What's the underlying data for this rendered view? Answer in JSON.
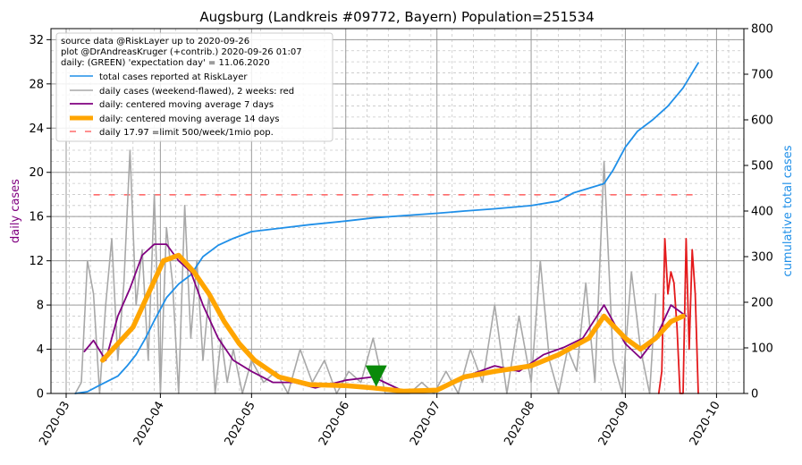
{
  "chart_data": {
    "type": "line",
    "title": "Augsburg (Landkreis #09772, Bayern) Population=251534",
    "ylabel_left": "daily cases",
    "ylabel_right": "cumulative total cases",
    "xlim": [
      "2020-02-25",
      "2020-10-10"
    ],
    "ylim_left": [
      0,
      33
    ],
    "ylim_right": [
      0,
      800
    ],
    "x_ticks": [
      "2020-03",
      "2020-04",
      "2020-05",
      "2020-06",
      "2020-07",
      "2020-08",
      "2020-09",
      "2020-10"
    ],
    "y_ticks_left": [
      0,
      4,
      8,
      12,
      16,
      20,
      24,
      28,
      32
    ],
    "y_ticks_right": [
      0,
      100,
      200,
      300,
      400,
      500,
      600,
      700,
      800
    ],
    "grid": true,
    "legend_position": "top-left",
    "info_lines": [
      "source data @RiskLayer up to 2020-09-26",
      "plot @DrAndreasKruger (+contrib.) 2020-09-26 01:07",
      "daily: (GREEN) 'expectation day' = 11.06.2020"
    ],
    "limit_value": 17.97,
    "expectation_day": "2020-06-11",
    "series": [
      {
        "name": "total cases reported at RiskLayer",
        "color": "#1f8fe8",
        "axis": "right",
        "dates": [
          "2020-03-04",
          "2020-03-08",
          "2020-03-12",
          "2020-03-15",
          "2020-03-18",
          "2020-03-21",
          "2020-03-24",
          "2020-03-27",
          "2020-03-30",
          "2020-04-03",
          "2020-04-07",
          "2020-04-11",
          "2020-04-15",
          "2020-04-20",
          "2020-04-25",
          "2020-05-01",
          "2020-05-10",
          "2020-05-20",
          "2020-06-01",
          "2020-06-10",
          "2020-06-20",
          "2020-07-01",
          "2020-07-10",
          "2020-07-20",
          "2020-08-01",
          "2020-08-10",
          "2020-08-15",
          "2020-08-20",
          "2020-08-25",
          "2020-08-28",
          "2020-09-01",
          "2020-09-05",
          "2020-09-10",
          "2020-09-15",
          "2020-09-20",
          "2020-09-25"
        ],
        "values": [
          0,
          4,
          18,
          28,
          38,
          60,
          85,
          120,
          160,
          210,
          240,
          260,
          300,
          325,
          340,
          355,
          362,
          370,
          378,
          385,
          390,
          395,
          400,
          405,
          412,
          422,
          440,
          450,
          460,
          490,
          540,
          575,
          600,
          630,
          670,
          725
        ]
      },
      {
        "name": "daily cases (weekend-flawed), 2 weeks: red",
        "color": "#a8a8a8",
        "axis": "left",
        "dates": [
          "2020-03-04",
          "2020-03-06",
          "2020-03-08",
          "2020-03-10",
          "2020-03-12",
          "2020-03-14",
          "2020-03-16",
          "2020-03-18",
          "2020-03-20",
          "2020-03-22",
          "2020-03-24",
          "2020-03-26",
          "2020-03-28",
          "2020-03-30",
          "2020-04-01",
          "2020-04-03",
          "2020-04-05",
          "2020-04-07",
          "2020-04-09",
          "2020-04-11",
          "2020-04-13",
          "2020-04-15",
          "2020-04-17",
          "2020-04-19",
          "2020-04-21",
          "2020-04-23",
          "2020-04-25",
          "2020-04-28",
          "2020-05-01",
          "2020-05-05",
          "2020-05-09",
          "2020-05-13",
          "2020-05-17",
          "2020-05-21",
          "2020-05-25",
          "2020-05-29",
          "2020-06-02",
          "2020-06-06",
          "2020-06-10",
          "2020-06-14",
          "2020-06-18",
          "2020-06-22",
          "2020-06-26",
          "2020-06-30",
          "2020-07-04",
          "2020-07-08",
          "2020-07-12",
          "2020-07-16",
          "2020-07-20",
          "2020-07-24",
          "2020-07-28",
          "2020-08-01",
          "2020-08-04",
          "2020-08-07",
          "2020-08-10",
          "2020-08-13",
          "2020-08-16",
          "2020-08-19",
          "2020-08-22",
          "2020-08-25",
          "2020-08-28",
          "2020-08-31",
          "2020-09-03",
          "2020-09-06",
          "2020-09-09",
          "2020-09-11"
        ],
        "values": [
          0,
          1,
          12,
          9,
          0,
          8,
          14,
          3,
          10,
          22,
          8,
          13,
          3,
          18,
          0,
          15,
          10,
          0,
          17,
          5,
          12,
          3,
          9,
          0,
          5,
          1,
          4,
          0,
          3,
          1,
          2,
          0,
          4,
          1,
          3,
          0,
          2,
          1,
          5,
          0,
          0,
          0,
          1,
          0,
          2,
          0,
          4,
          1,
          8,
          0,
          7,
          1,
          12,
          3,
          0,
          4,
          2,
          10,
          1,
          21,
          3,
          0,
          11,
          4,
          0,
          9
        ]
      },
      {
        "name": "daily cases (weekend-flawed), 2 weeks: red",
        "color": "#e41a1c",
        "axis": "left",
        "dates": [
          "2020-09-12",
          "2020-09-13",
          "2020-09-14",
          "2020-09-15",
          "2020-09-16",
          "2020-09-17",
          "2020-09-18",
          "2020-09-19",
          "2020-09-20",
          "2020-09-21",
          "2020-09-22",
          "2020-09-23",
          "2020-09-24",
          "2020-09-25"
        ],
        "values": [
          0,
          2,
          14,
          9,
          11,
          10,
          6,
          0,
          0,
          14,
          4,
          13,
          9,
          0
        ]
      },
      {
        "name": "daily: centered moving average 7 days",
        "color": "#800080",
        "axis": "left",
        "dates": [
          "2020-03-07",
          "2020-03-10",
          "2020-03-14",
          "2020-03-18",
          "2020-03-22",
          "2020-03-26",
          "2020-03-30",
          "2020-04-03",
          "2020-04-07",
          "2020-04-11",
          "2020-04-15",
          "2020-04-20",
          "2020-04-25",
          "2020-05-01",
          "2020-05-08",
          "2020-05-15",
          "2020-05-22",
          "2020-06-01",
          "2020-06-10",
          "2020-06-20",
          "2020-07-01",
          "2020-07-10",
          "2020-07-20",
          "2020-07-28",
          "2020-08-05",
          "2020-08-12",
          "2020-08-18",
          "2020-08-25",
          "2020-09-01",
          "2020-09-06",
          "2020-09-11",
          "2020-09-16",
          "2020-09-21"
        ],
        "values": [
          3.8,
          4.8,
          3.0,
          7.0,
          9.5,
          12.5,
          13.5,
          13.5,
          12.0,
          11.0,
          8.0,
          5.0,
          3.0,
          2.0,
          1.0,
          1.0,
          0.5,
          1.2,
          1.5,
          0.2,
          0.3,
          1.5,
          2.5,
          2.0,
          3.5,
          4.2,
          5.0,
          8.0,
          4.5,
          3.2,
          5.0,
          8.0,
          7.0
        ]
      },
      {
        "name": "daily: centered moving average 14 days",
        "color": "#ffa500",
        "axis": "left",
        "dates": [
          "2020-03-13",
          "2020-03-18",
          "2020-03-23",
          "2020-03-28",
          "2020-04-02",
          "2020-04-07",
          "2020-04-12",
          "2020-04-17",
          "2020-04-22",
          "2020-04-27",
          "2020-05-02",
          "2020-05-10",
          "2020-05-20",
          "2020-06-01",
          "2020-06-10",
          "2020-06-20",
          "2020-07-01",
          "2020-07-10",
          "2020-07-20",
          "2020-08-01",
          "2020-08-10",
          "2020-08-20",
          "2020-08-25",
          "2020-09-01",
          "2020-09-06",
          "2020-09-11",
          "2020-09-16",
          "2020-09-20"
        ],
        "values": [
          3.0,
          4.5,
          6.0,
          9.0,
          12.0,
          12.5,
          11.0,
          9.0,
          6.5,
          4.5,
          3.0,
          1.5,
          0.8,
          0.7,
          0.5,
          0.2,
          0.3,
          1.5,
          2.0,
          2.5,
          3.5,
          5.0,
          7.0,
          5.0,
          4.0,
          5.0,
          6.5,
          7.0
        ]
      }
    ],
    "limit_label": "daily 17.97 =limit 500/week/1mio pop."
  }
}
